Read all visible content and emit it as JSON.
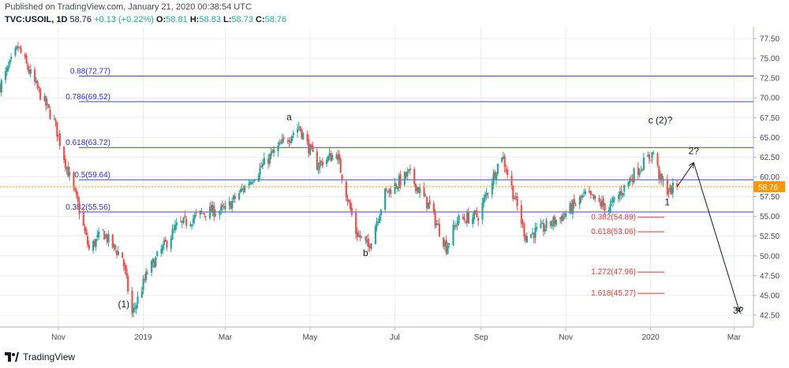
{
  "header": {
    "published": "Published on TradingView.com, January 21, 2020 00:38:54 UTC",
    "symbol": "TVC:USOIL, 1D",
    "last": "58.76",
    "change": "+0.13 (+0.22%)",
    "o_label": "O:",
    "o_value": "58.81",
    "h_label": "H:",
    "h_value": "58.83",
    "l_label": "L:",
    "l_value": "58.73",
    "c_label": "C:",
    "c_value": "58.76"
  },
  "footer": {
    "brand": "TradingView"
  },
  "colors": {
    "up": "#26a69a",
    "down": "#ef5350",
    "fib": "#3f3fd4",
    "fib_text": "#2e2ec2",
    "ext": "#e53935",
    "price_tag": "#ff9800",
    "grid": "#ececec",
    "wave": "#131722"
  },
  "chart_data": {
    "type": "candlestick",
    "title": "TVC:USOIL, 1D",
    "ylim": [
      41,
      79
    ],
    "xlim": [
      "2018-09-20",
      "2020-03-15"
    ],
    "y_ticks": [
      "42.50",
      "45.00",
      "47.50",
      "50.00",
      "52.50",
      "55.00",
      "57.50",
      "60.00",
      "62.50",
      "65.00",
      "67.50",
      "70.00",
      "72.50",
      "75.00",
      "77.50"
    ],
    "x_ticks": [
      {
        "label": "Nov",
        "date": "2018-11-01"
      },
      {
        "label": "2019",
        "date": "2019-01-01"
      },
      {
        "label": "Mar",
        "date": "2019-03-01"
      },
      {
        "label": "May",
        "date": "2019-05-01"
      },
      {
        "label": "Jul",
        "date": "2019-07-01"
      },
      {
        "label": "Sep",
        "date": "2019-09-01"
      },
      {
        "label": "Nov",
        "date": "2019-11-01"
      },
      {
        "label": "2020",
        "date": "2020-01-01"
      },
      {
        "label": "Mar",
        "date": "2020-03-01"
      }
    ],
    "last_price": 58.76,
    "last_price_label": "58.76",
    "price_path": [
      [
        "2018-09-20",
        71.5
      ],
      [
        "2018-10-03",
        76.4
      ],
      [
        "2018-10-15",
        71.8
      ],
      [
        "2018-10-29",
        67.0
      ],
      [
        "2018-11-08",
        60.6
      ],
      [
        "2018-11-15",
        56.5
      ],
      [
        "2018-11-23",
        50.8
      ],
      [
        "2018-12-03",
        53.0
      ],
      [
        "2018-12-10",
        51.2
      ],
      [
        "2018-12-17",
        49.9
      ],
      [
        "2018-12-24",
        42.6
      ],
      [
        "2019-01-04",
        47.9
      ],
      [
        "2019-01-25",
        53.7
      ],
      [
        "2019-02-15",
        55.6
      ],
      [
        "2019-03-01",
        55.8
      ],
      [
        "2019-03-20",
        59.8
      ],
      [
        "2019-04-05",
        63.1
      ],
      [
        "2019-04-23",
        66.4
      ],
      [
        "2019-05-06",
        61.5
      ],
      [
        "2019-05-20",
        63.0
      ],
      [
        "2019-06-03",
        53.0
      ],
      [
        "2019-06-12",
        51.1
      ],
      [
        "2019-06-24",
        57.9
      ],
      [
        "2019-07-11",
        60.4
      ],
      [
        "2019-07-26",
        56.2
      ],
      [
        "2019-08-07",
        51.1
      ],
      [
        "2019-08-15",
        54.5
      ],
      [
        "2019-08-30",
        55.1
      ],
      [
        "2019-09-16",
        62.9
      ],
      [
        "2019-10-03",
        52.5
      ],
      [
        "2019-10-15",
        53.4
      ],
      [
        "2019-10-30",
        55.1
      ],
      [
        "2019-11-15",
        57.7
      ],
      [
        "2019-12-02",
        56.0
      ],
      [
        "2019-12-20",
        60.4
      ],
      [
        "2020-01-03",
        63.1
      ],
      [
        "2020-01-08",
        59.6
      ],
      [
        "2020-01-14",
        58.2
      ],
      [
        "2020-01-20",
        58.76
      ]
    ],
    "fib_levels": [
      {
        "ratio": "0.88",
        "value": 72.77,
        "label": "0.88(72.77)"
      },
      {
        "ratio": "0.786",
        "value": 69.52,
        "label": "0.786(69.52)"
      },
      {
        "ratio": "0.618",
        "value": 63.72,
        "label": "0.618(63.72)"
      },
      {
        "ratio": "0.5",
        "value": 59.64,
        "label": "0.5(59.64)"
      },
      {
        "ratio": "0.382",
        "value": 55.56,
        "label": "0.382(55.56)"
      }
    ],
    "extension_levels": [
      {
        "value": 54.89,
        "label": "0.382(54.89)"
      },
      {
        "value": 53.06,
        "label": "0.618(53.06)"
      },
      {
        "value": 47.96,
        "label": "1.272(47.96)"
      },
      {
        "value": 45.27,
        "label": "1.618(45.27)"
      }
    ],
    "wave_labels": [
      {
        "text": "(1)",
        "date": "2018-12-18",
        "price": 43.5
      },
      {
        "text": "a",
        "date": "2019-04-16",
        "price": 67.2
      },
      {
        "text": "b",
        "date": "2019-06-10",
        "price": 50.0
      },
      {
        "text": "c (2)?",
        "date": "2020-01-08",
        "price": 66.8
      },
      {
        "text": "1",
        "date": "2020-01-13",
        "price": 56.4
      },
      {
        "text": "2?",
        "date": "2020-02-01",
        "price": 62.9
      },
      {
        "text": "3?",
        "date": "2020-03-04",
        "price": 42.7
      }
    ],
    "projection": [
      [
        "2020-01-20",
        58.76
      ],
      [
        "2020-02-01",
        61.8
      ],
      [
        "2020-03-05",
        42.9
      ]
    ]
  }
}
